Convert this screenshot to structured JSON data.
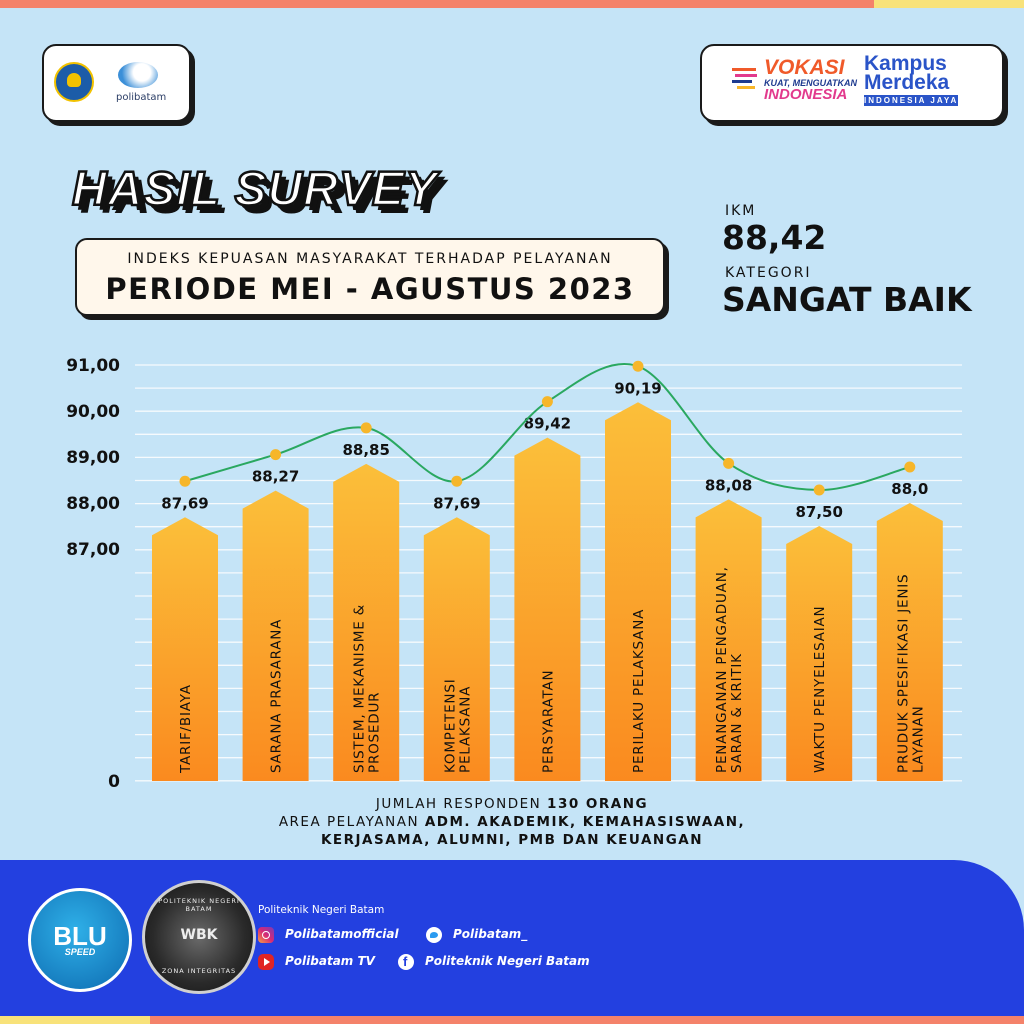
{
  "header": {
    "logos_left": [
      "tutwuri-logo",
      "polibatam-logo"
    ],
    "polibatam_logo_text": "polibatam",
    "vokasi_logo": {
      "line1": "VOKASI",
      "line2": "KUAT, MENGUATKAN",
      "line3": "INDONESIA"
    },
    "kampus_logo": {
      "line1": "Kampus",
      "line2": "Merdeka",
      "line3": "INDONESIA JAYA"
    }
  },
  "title": "HASIL SURVEY",
  "subtitle": "INDEKS KEPUASAN MASYARAKAT TERHADAP PELAYANAN",
  "period": "PERIODE MEI - AGUSTUS 2023",
  "ikm": {
    "label": "IKM",
    "value": "88,42",
    "category_label": "KATEGORI",
    "category": "SANGAT BAIK"
  },
  "chart_data": {
    "type": "bar",
    "categories": [
      "TARIF/BIAYA",
      "SARANA PRASARANA",
      "SISTEM, MEKANISME & PROSEDUR",
      "KOMPETENSI PELAKSANA",
      "PERSYARATAN",
      "PERILAKU PELAKSANA",
      "PENANGANAN PENGADUAN, SARAN & KRITIK",
      "WAKTU PENYELESAIAN",
      "PRUDUK SPESIFIKASI JENIS LAYANAN"
    ],
    "category_lines": [
      [
        "TARIF/BIAYA"
      ],
      [
        "SARANA PRASARANA"
      ],
      [
        "SISTEM, MEKANISME &",
        "PROSEDUR"
      ],
      [
        "KOMPETENSI",
        "PELAKSANA"
      ],
      [
        "PERSYARATAN"
      ],
      [
        "PERILAKU PELAKSANA"
      ],
      [
        "PENANGANAN PENGADUAN,",
        "SARAN & KRITIK"
      ],
      [
        "WAKTU PENYELESAIAN"
      ],
      [
        "PRUDUK SPESIFIKASI JENIS",
        "LAYANAN"
      ]
    ],
    "values": [
      87.69,
      88.27,
      88.85,
      87.69,
      89.42,
      90.19,
      88.08,
      87.5,
      88.0
    ],
    "value_labels": [
      "87,69",
      "88,27",
      "88,85",
      "87,69",
      "89,42",
      "90,19",
      "88,08",
      "87,50",
      "88,0"
    ],
    "y_ticks": [
      "91,00",
      "90,00",
      "89,00",
      "88,00",
      "87,00",
      "0"
    ],
    "y_tick_values": [
      91,
      90,
      89,
      88,
      87,
      0
    ],
    "overlay": "line with markers (smooth)",
    "grid": true,
    "colors": {
      "bar_top": "#fbbf3a",
      "bar_bottom": "#fa8a1f",
      "line": "#2aa860",
      "marker": "#f6b62a"
    }
  },
  "respondents": {
    "prefix": "JUMLAH RESPONDEN",
    "count": "130 ORANG"
  },
  "area": {
    "prefix": "AREA PELAYANAN",
    "line1": "ADM. AKADEMIK, KEMAHASISWAAN,",
    "line2": "KERJASAMA, ALUMNI, PMB DAN KEUANGAN"
  },
  "footer": {
    "blu": {
      "main": "BLU",
      "sub": "SPEED"
    },
    "wbk": {
      "top": "POLITEKNIK NEGERI BATAM",
      "main": "WBK",
      "bottom": "ZONA INTEGRITAS"
    },
    "institution": "Politeknik Negeri Batam",
    "socials": [
      {
        "icon": "instagram-icon",
        "text": "Polibatamofficial"
      },
      {
        "icon": "twitter-icon",
        "text": "Polibatam_"
      },
      {
        "icon": "youtube-icon",
        "text": "Polibatam TV"
      },
      {
        "icon": "facebook-icon",
        "text": "Politeknik Negeri Batam"
      }
    ]
  }
}
